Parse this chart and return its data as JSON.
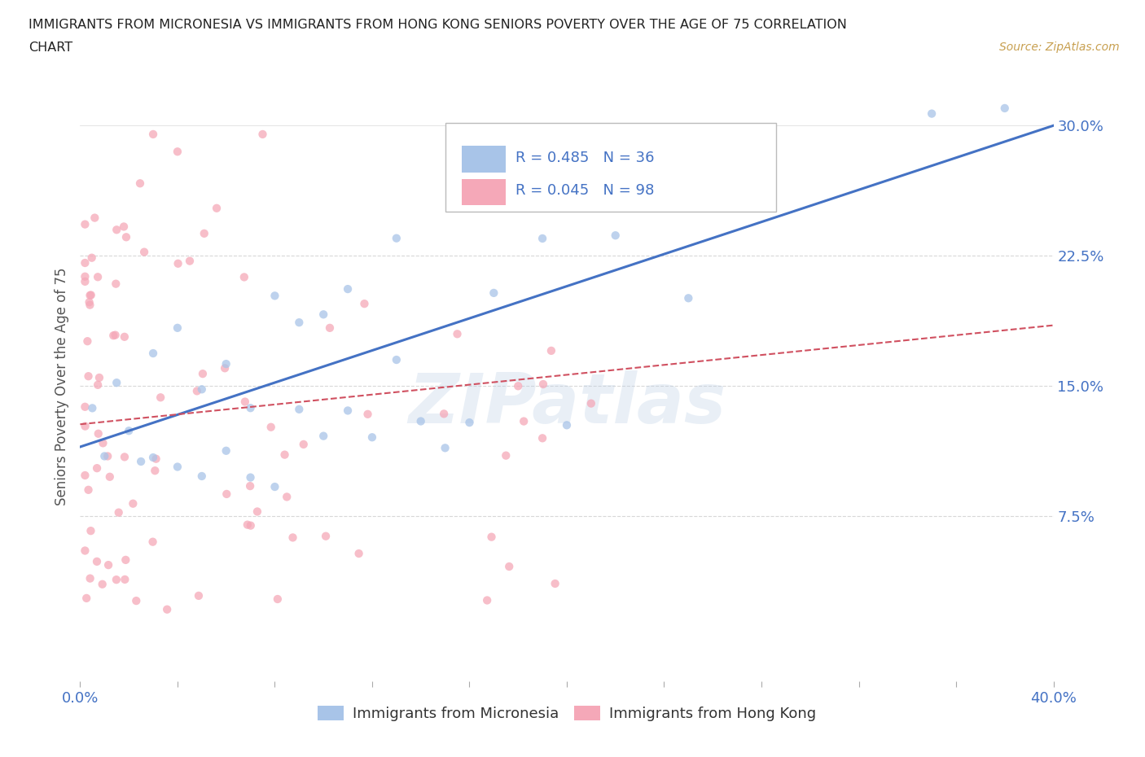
{
  "title_line1": "IMMIGRANTS FROM MICRONESIA VS IMMIGRANTS FROM HONG KONG SENIORS POVERTY OVER THE AGE OF 75 CORRELATION",
  "title_line2": "CHART",
  "source": "Source: ZipAtlas.com",
  "ylabel": "Seniors Poverty Over the Age of 75",
  "xlim": [
    0.0,
    0.4
  ],
  "ylim": [
    -0.02,
    0.32
  ],
  "color_micronesia": "#a8c4e8",
  "color_hongkong": "#f5a8b8",
  "color_line_micronesia": "#4472c4",
  "color_line_hongkong": "#d05060",
  "color_title": "#333333",
  "color_ticks": "#4472c4",
  "color_source": "#c8a050",
  "color_grid": "#d8d8d8",
  "watermark": "ZIPatlas",
  "mic_trend_x0": 0.0,
  "mic_trend_y0": 0.115,
  "mic_trend_x1": 0.4,
  "mic_trend_y1": 0.3,
  "hk_trend_x0": 0.0,
  "hk_trend_y0": 0.128,
  "hk_trend_x1": 0.4,
  "hk_trend_y1": 0.185
}
